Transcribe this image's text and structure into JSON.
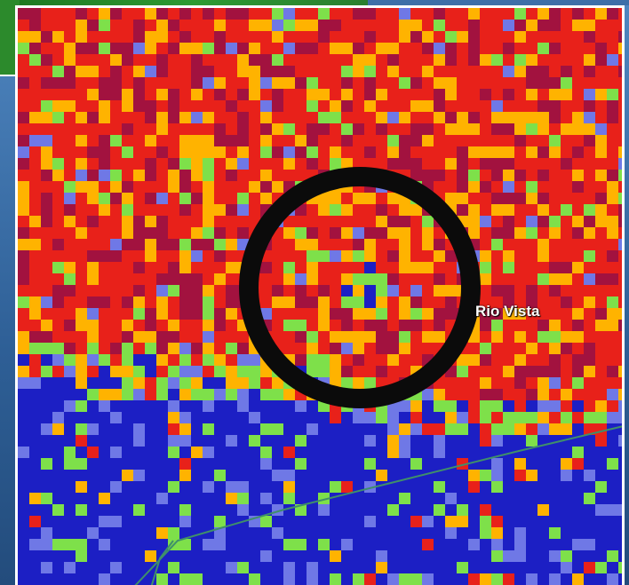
{
  "map": {
    "type": "radar-velocity-image",
    "place_label": "Rio Vista",
    "annotation": "black-circle-highlight",
    "colors": {
      "inbound_strong": "#1c1fc4",
      "inbound_light": "#6f78e6",
      "near_zero": "#7ee04a",
      "outbound_mid": "#ffb300",
      "outbound_high": "#e8211a",
      "outbound_max": "#a2123f",
      "circle": "#0b0b0b",
      "road": "#3f8f6a"
    }
  }
}
